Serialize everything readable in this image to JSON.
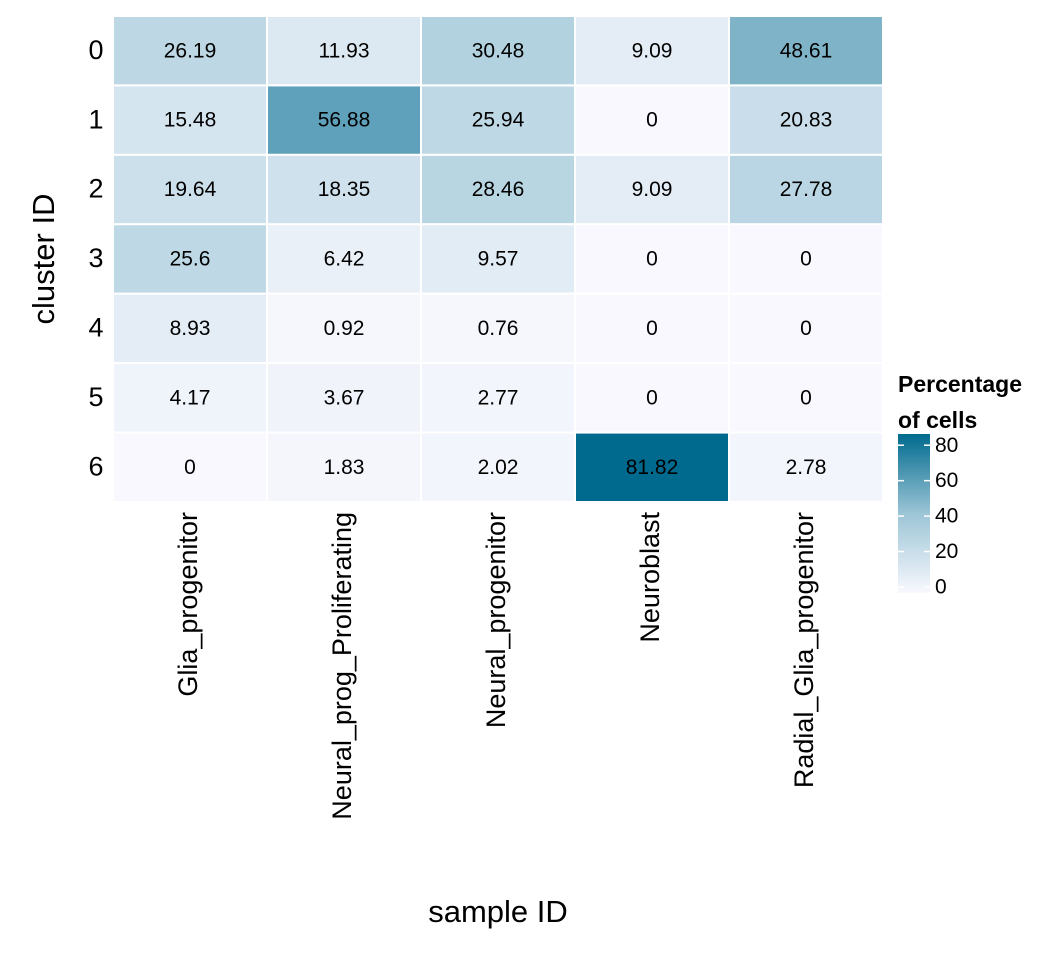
{
  "chart_data": {
    "type": "heatmap",
    "x_label": "sample ID",
    "y_label": "cluster ID",
    "legend_title": "Percentage of cells",
    "x_categories": [
      "Glia_progenitor",
      "Neural_prog_Proliferating",
      "Neural_progenitor",
      "Neuroblast",
      "Radial_Glia_progenitor"
    ],
    "y_categories": [
      "0",
      "1",
      "2",
      "3",
      "4",
      "5",
      "6"
    ],
    "values": [
      [
        26.19,
        11.93,
        30.48,
        9.09,
        48.61
      ],
      [
        15.48,
        56.88,
        25.94,
        0,
        20.83
      ],
      [
        19.64,
        18.35,
        28.46,
        9.09,
        27.78
      ],
      [
        25.6,
        6.42,
        9.57,
        0,
        0
      ],
      [
        8.93,
        0.92,
        0.76,
        0,
        0
      ],
      [
        4.17,
        3.67,
        2.77,
        0,
        0
      ],
      [
        0,
        1.83,
        2.02,
        81.82,
        2.78
      ]
    ],
    "colors": [
      "#f8f8fe",
      "#9cc5d6",
      "#006a8e"
    ],
    "clim": [
      0,
      81.82
    ],
    "cticks": [
      0,
      20,
      40,
      60,
      80
    ]
  }
}
